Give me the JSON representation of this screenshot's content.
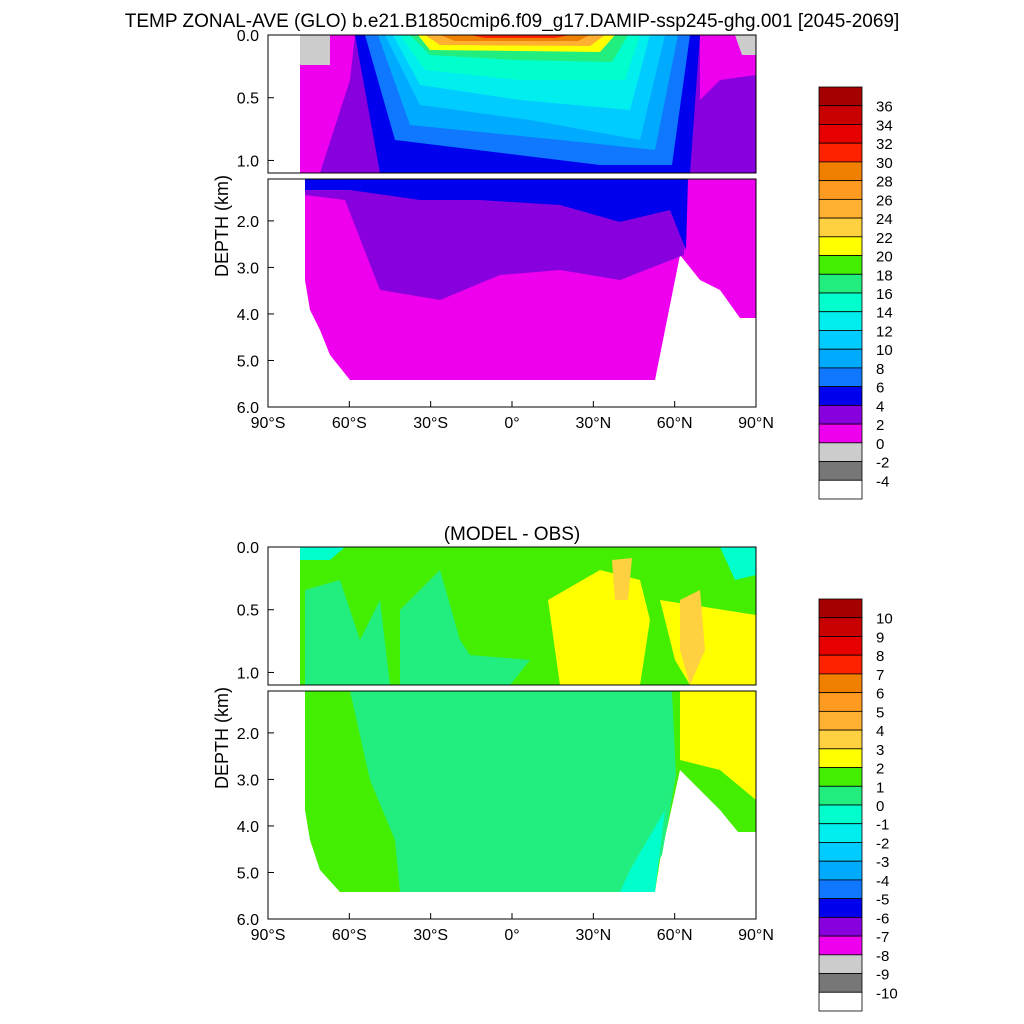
{
  "chart_data": [
    {
      "type": "heatmap",
      "title": "TEMP ZONAL-AVE (GLO) b.e21.B1850cmip6.f09_g17.DAMIP-ssp245-ghg.001 [2045-2069]",
      "ylabel": "DEPTH (km)",
      "xlabel": "",
      "x_ticks": [
        "90°S",
        "60°S",
        "30°S",
        "0°",
        "30°N",
        "60°N",
        "90°N"
      ],
      "y_ticks_upper": [
        "0.0",
        "0.5",
        "1.0"
      ],
      "y_ticks_lower": [
        "2.0",
        "3.0",
        "4.0",
        "5.0",
        "6.0"
      ],
      "xlim": [
        -90,
        90
      ],
      "ylim_upper": [
        0,
        1.1
      ],
      "ylim_lower": [
        1.1,
        6.0
      ],
      "colorbar": {
        "levels": [
          "36",
          "34",
          "32",
          "30",
          "28",
          "26",
          "24",
          "22",
          "20",
          "18",
          "16",
          "14",
          "12",
          "10",
          "8",
          "6",
          "4",
          "2",
          "0",
          "-2",
          "-4"
        ],
        "colors": [
          "#a50000",
          "#c80000",
          "#e60000",
          "#ff2200",
          "#f08000",
          "#ff9a20",
          "#ffb030",
          "#ffd040",
          "#ffff00",
          "#44ee00",
          "#22ee80",
          "#00ffcc",
          "#00eeee",
          "#00ccff",
          "#00aaff",
          "#1077ff",
          "#0000ee",
          "#8800dd",
          "#ee00ee",
          "#cccccc",
          "#777777",
          "#ffffff"
        ]
      },
      "annotation": "zonal-average ocean temperature vs latitude and depth; warm surface tropics (>28) cooling to 0–4 at depth"
    },
    {
      "type": "heatmap",
      "title": "(MODEL - OBS)",
      "ylabel": "DEPTH (km)",
      "xlabel": "",
      "x_ticks": [
        "90°S",
        "60°S",
        "30°S",
        "0°",
        "30°N",
        "60°N",
        "90°N"
      ],
      "y_ticks_upper": [
        "0.0",
        "0.5",
        "1.0"
      ],
      "y_ticks_lower": [
        "2.0",
        "3.0",
        "4.0",
        "5.0",
        "6.0"
      ],
      "xlim": [
        -90,
        90
      ],
      "ylim_upper": [
        0,
        1.1
      ],
      "ylim_lower": [
        1.1,
        6.0
      ],
      "colorbar": {
        "levels": [
          "10",
          "9",
          "8",
          "7",
          "6",
          "5",
          "4",
          "3",
          "2",
          "1",
          "0",
          "-1",
          "-2",
          "-3",
          "-4",
          "-5",
          "-6",
          "-7",
          "-8",
          "-9",
          "-10"
        ],
        "colors": [
          "#a50000",
          "#c80000",
          "#e60000",
          "#ff2200",
          "#f08000",
          "#ff9a20",
          "#ffb030",
          "#ffd040",
          "#ffff00",
          "#44ee00",
          "#22ee80",
          "#00ffcc",
          "#00eeee",
          "#00ccff",
          "#00aaff",
          "#1077ff",
          "#0000ee",
          "#8800dd",
          "#ee00ee",
          "#cccccc",
          "#777777",
          "#ffffff"
        ]
      },
      "annotation": "model minus observation; mostly 0 to 2 with 2 to 4 in northern mid-latitudes"
    }
  ]
}
